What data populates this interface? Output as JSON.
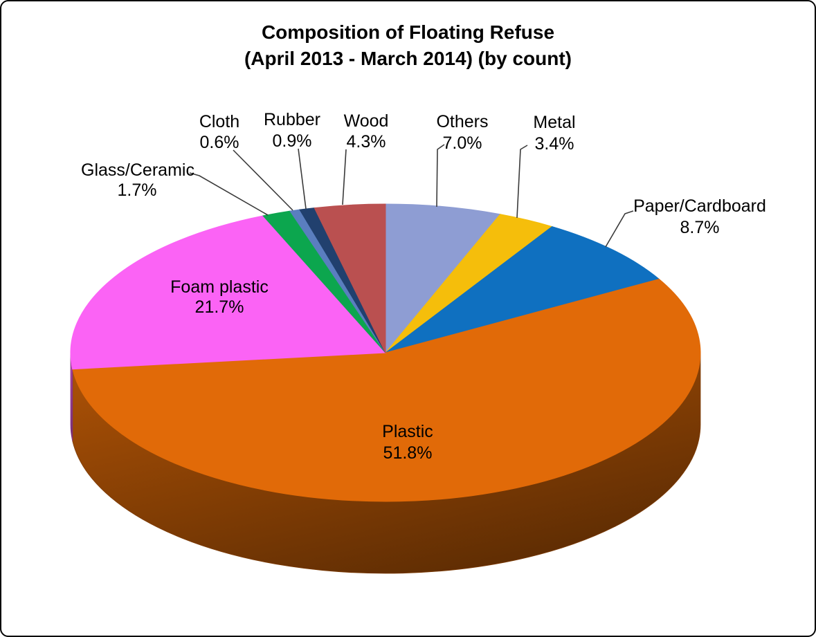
{
  "page": {
    "background_color": "#FFFFFF",
    "border_color": "#000000"
  },
  "chart_data": {
    "type": "pie",
    "style": "3d",
    "title": "Composition of Floating Refuse",
    "subtitle": "(April 2013 - March 2014) (by count)",
    "value_unit": "percent",
    "direction": "clockwise-from-top",
    "legend": "none",
    "labels_show": "name-and-percent",
    "slices": [
      {
        "label": "Others",
        "value": 7.0,
        "color": "#8E9DD3",
        "label_placement": "outside"
      },
      {
        "label": "Metal",
        "value": 3.4,
        "color": "#F5BE0B",
        "label_placement": "outside"
      },
      {
        "label": "Paper/Cardboard",
        "value": 8.7,
        "color": "#0F70C0",
        "label_placement": "outside"
      },
      {
        "label": "Plastic",
        "value": 51.8,
        "color": "#E16A08",
        "label_placement": "inside"
      },
      {
        "label": "Foam plastic",
        "value": 21.7,
        "color": "#FB63F5",
        "label_placement": "inside"
      },
      {
        "label": "Glass/Ceramic",
        "value": 1.7,
        "color": "#0CA64E",
        "label_placement": "outside"
      },
      {
        "label": "Cloth",
        "value": 0.6,
        "color": "#5A7EBF",
        "label_placement": "outside"
      },
      {
        "label": "Rubber",
        "value": 0.9,
        "color": "#21406E",
        "label_placement": "outside"
      },
      {
        "label": "Wood",
        "value": 4.3,
        "color": "#BA5050",
        "label_placement": "outside"
      }
    ]
  }
}
